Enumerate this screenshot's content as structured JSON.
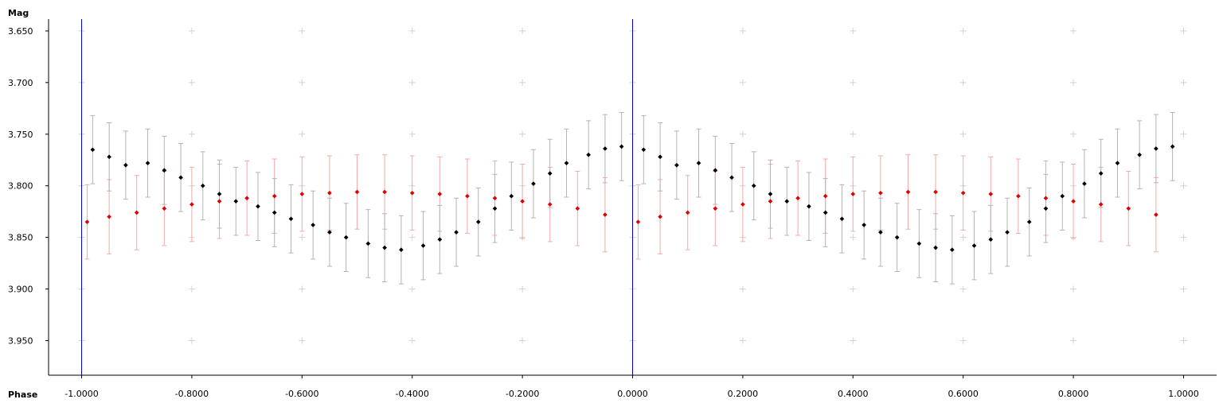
{
  "chart_data": {
    "type": "scatter",
    "title": "",
    "xlabel": "Phase",
    "ylabel": "Mag",
    "xlim": [
      -1.06,
      1.06
    ],
    "ylim": [
      3.6385,
      3.9835
    ],
    "y_inverted": true,
    "grid": "plus-markers",
    "x_ticks": [
      -1.0,
      -0.8,
      -0.6,
      -0.4,
      -0.2,
      0.0,
      0.2,
      0.4,
      0.6,
      0.8,
      1.0
    ],
    "x_tick_labels": [
      "-1.0000",
      "-0.8000",
      "-0.6000",
      "-0.4000",
      "-0.2000",
      "0.0000",
      "0.2000",
      "0.4000",
      "0.6000",
      "0.8000",
      "1.0000"
    ],
    "y_ticks": [
      3.65,
      3.7,
      3.75,
      3.8,
      3.85,
      3.9,
      3.95
    ],
    "y_tick_labels": [
      "3.650",
      "3.700",
      "3.750",
      "3.800",
      "3.850",
      "3.900",
      "3.950"
    ],
    "reference_lines_x": [
      -1.0,
      0.0
    ],
    "colors": {
      "primary_point": "#000000",
      "primary_errorbar": "#b4b4b4",
      "secondary_point": "#e00000",
      "secondary_errorbar": "#f3aaaa",
      "reference_line": "#0000c8",
      "axis": "#000000",
      "grid_marker": "#d2d2d2"
    },
    "series": [
      {
        "color": "#000000",
        "errorbar_color": "#b4b4b4",
        "typical_error": 0.033,
        "x": [
          -0.98,
          -0.95,
          -0.92,
          -0.88,
          -0.85,
          -0.82,
          -0.78,
          -0.75,
          -0.72,
          -0.68,
          -0.65,
          -0.62,
          -0.58,
          -0.55,
          -0.52,
          -0.48,
          -0.45,
          -0.42,
          -0.38,
          -0.35,
          -0.32,
          -0.28,
          -0.25,
          -0.22,
          -0.18,
          -0.15,
          -0.12,
          -0.08,
          -0.05,
          -0.02,
          0.02,
          0.05,
          0.08,
          0.12,
          0.15,
          0.18,
          0.22,
          0.25,
          0.28,
          0.32,
          0.35,
          0.38,
          0.42,
          0.45,
          0.48,
          0.52,
          0.55,
          0.58,
          0.62,
          0.65,
          0.68,
          0.72,
          0.75,
          0.78,
          0.82,
          0.85,
          0.88,
          0.92,
          0.95,
          0.98
        ],
        "y": [
          3.765,
          3.772,
          3.78,
          3.778,
          3.785,
          3.792,
          3.8,
          3.808,
          3.815,
          3.82,
          3.826,
          3.832,
          3.838,
          3.845,
          3.85,
          3.856,
          3.86,
          3.862,
          3.858,
          3.852,
          3.845,
          3.835,
          3.822,
          3.81,
          3.798,
          3.788,
          3.778,
          3.77,
          3.764,
          3.762,
          3.765,
          3.772,
          3.78,
          3.778,
          3.785,
          3.792,
          3.8,
          3.808,
          3.815,
          3.82,
          3.826,
          3.832,
          3.838,
          3.845,
          3.85,
          3.856,
          3.86,
          3.862,
          3.858,
          3.852,
          3.845,
          3.835,
          3.822,
          3.81,
          3.798,
          3.788,
          3.778,
          3.77,
          3.764,
          3.762
        ]
      },
      {
        "color": "#e00000",
        "errorbar_color": "#f3aaaa",
        "typical_error": 0.036,
        "x": [
          -0.99,
          -0.95,
          -0.9,
          -0.85,
          -0.8,
          -0.75,
          -0.7,
          -0.65,
          -0.6,
          -0.55,
          -0.5,
          -0.45,
          -0.4,
          -0.35,
          -0.3,
          -0.25,
          -0.2,
          -0.15,
          -0.1,
          -0.05,
          0.01,
          0.05,
          0.1,
          0.15,
          0.2,
          0.25,
          0.3,
          0.35,
          0.4,
          0.45,
          0.5,
          0.55,
          0.6,
          0.65,
          0.7,
          0.75,
          0.8,
          0.85,
          0.9,
          0.95
        ],
        "y": [
          3.835,
          3.83,
          3.826,
          3.822,
          3.818,
          3.815,
          3.812,
          3.81,
          3.808,
          3.807,
          3.806,
          3.806,
          3.807,
          3.808,
          3.81,
          3.812,
          3.815,
          3.818,
          3.822,
          3.828,
          3.835,
          3.83,
          3.826,
          3.822,
          3.818,
          3.815,
          3.812,
          3.81,
          3.808,
          3.807,
          3.806,
          3.806,
          3.807,
          3.808,
          3.81,
          3.812,
          3.815,
          3.818,
          3.822,
          3.828
        ]
      }
    ]
  }
}
